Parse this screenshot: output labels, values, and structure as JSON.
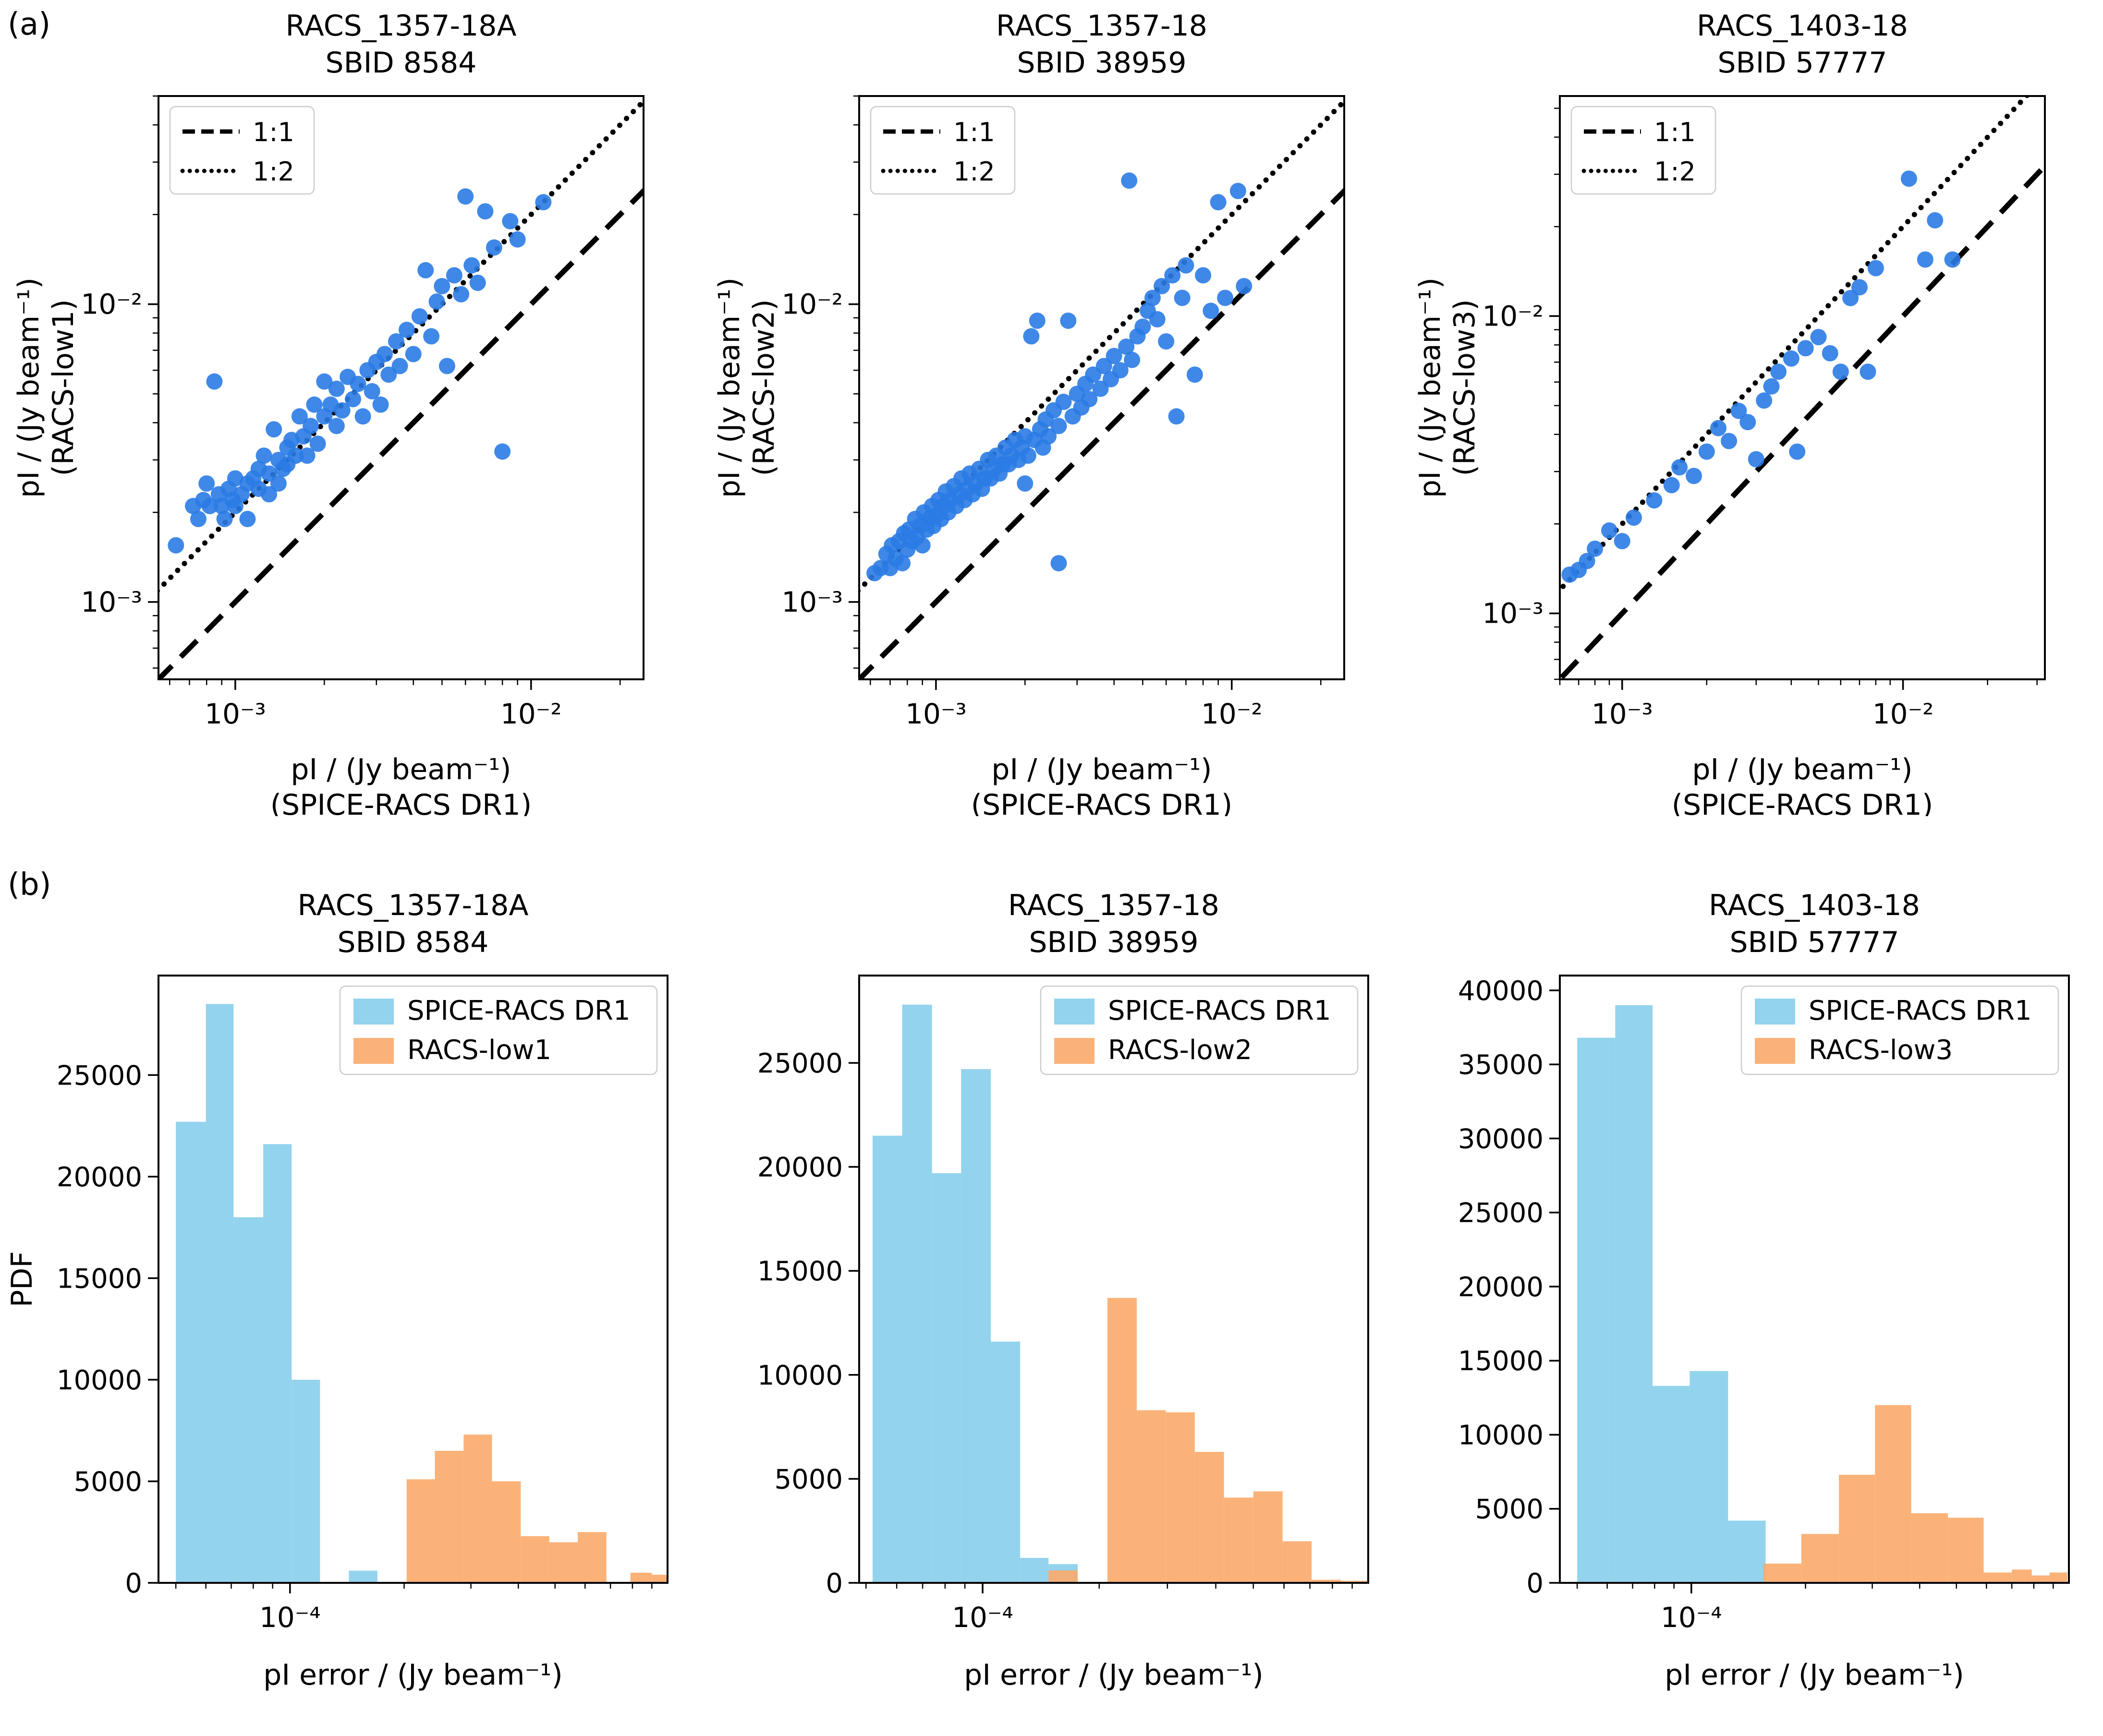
{
  "panel_labels": {
    "a": "(a)",
    "b": "(b)"
  },
  "colors": {
    "scatter_point": "#2a7be4",
    "hist_blue": "#87ceeb",
    "hist_orange": "#fbaa6a",
    "line": "#000000",
    "legend_border": "#cccccc"
  },
  "chart_data": [
    {
      "type": "scatter",
      "title_line1": "RACS_1357-18A",
      "title_line2": "SBID 8584",
      "xlabel_line1": "pI / (Jy beam⁻¹)",
      "xlabel_line2": "(SPICE-RACS DR1)",
      "ylabel_line1": "pI / (Jy beam⁻¹)",
      "ylabel_line2": "(RACS-low1)",
      "xlim": [
        0.00055,
        0.024
      ],
      "ylim": [
        0.00055,
        0.05
      ],
      "xticks": [
        {
          "v": 0.001,
          "label": "10⁻³"
        },
        {
          "v": 0.01,
          "label": "10⁻²"
        }
      ],
      "yticks": [
        {
          "v": 0.001,
          "label": "10⁻³"
        },
        {
          "v": 0.01,
          "label": "10⁻²"
        }
      ],
      "legend": [
        {
          "style": "dashed",
          "label": "1:1"
        },
        {
          "style": "dotted",
          "label": "1:2"
        }
      ],
      "lines": [
        {
          "style": "dashed",
          "slope": 1
        },
        {
          "style": "dotted",
          "slope": 2
        }
      ],
      "points": [
        [
          0.00063,
          0.00155
        ],
        [
          0.00072,
          0.0021
        ],
        [
          0.00075,
          0.0019
        ],
        [
          0.00078,
          0.0022
        ],
        [
          0.0008,
          0.0025
        ],
        [
          0.00082,
          0.0021
        ],
        [
          0.00085,
          0.0055
        ],
        [
          0.00088,
          0.0023
        ],
        [
          0.0009,
          0.0021
        ],
        [
          0.00092,
          0.0019
        ],
        [
          0.00095,
          0.0024
        ],
        [
          0.00098,
          0.0022
        ],
        [
          0.001,
          0.0026
        ],
        [
          0.001,
          0.0021
        ],
        [
          0.00105,
          0.0023
        ],
        [
          0.0011,
          0.0025
        ],
        [
          0.0011,
          0.0019
        ],
        [
          0.00115,
          0.0026
        ],
        [
          0.0012,
          0.0028
        ],
        [
          0.0012,
          0.0024
        ],
        [
          0.00125,
          0.0031
        ],
        [
          0.0013,
          0.0027
        ],
        [
          0.0013,
          0.0023
        ],
        [
          0.00135,
          0.0038
        ],
        [
          0.0014,
          0.003
        ],
        [
          0.0014,
          0.0025
        ],
        [
          0.00145,
          0.0028
        ],
        [
          0.0015,
          0.0033
        ],
        [
          0.0015,
          0.0029
        ],
        [
          0.00155,
          0.0035
        ],
        [
          0.0016,
          0.0031
        ],
        [
          0.00165,
          0.0042
        ],
        [
          0.0017,
          0.0036
        ],
        [
          0.00175,
          0.0031
        ],
        [
          0.0018,
          0.0039
        ],
        [
          0.00185,
          0.0046
        ],
        [
          0.0019,
          0.0034
        ],
        [
          0.002,
          0.0042
        ],
        [
          0.002,
          0.0055
        ],
        [
          0.0021,
          0.0046
        ],
        [
          0.0022,
          0.0039
        ],
        [
          0.0022,
          0.0052
        ],
        [
          0.0023,
          0.0044
        ],
        [
          0.0024,
          0.0057
        ],
        [
          0.0025,
          0.0048
        ],
        [
          0.0026,
          0.0054
        ],
        [
          0.0027,
          0.0042
        ],
        [
          0.0028,
          0.006
        ],
        [
          0.0029,
          0.0051
        ],
        [
          0.003,
          0.0064
        ],
        [
          0.0031,
          0.0046
        ],
        [
          0.0032,
          0.0068
        ],
        [
          0.0033,
          0.0058
        ],
        [
          0.0035,
          0.0075
        ],
        [
          0.0036,
          0.0062
        ],
        [
          0.0038,
          0.0082
        ],
        [
          0.004,
          0.0068
        ],
        [
          0.0042,
          0.0091
        ],
        [
          0.0044,
          0.013
        ],
        [
          0.0046,
          0.0078
        ],
        [
          0.0048,
          0.0102
        ],
        [
          0.005,
          0.0115
        ],
        [
          0.0052,
          0.0062
        ],
        [
          0.0055,
          0.0125
        ],
        [
          0.0058,
          0.0108
        ],
        [
          0.006,
          0.023
        ],
        [
          0.0063,
          0.0135
        ],
        [
          0.0066,
          0.0118
        ],
        [
          0.007,
          0.0205
        ],
        [
          0.0075,
          0.0155
        ],
        [
          0.008,
          0.0032
        ],
        [
          0.0085,
          0.019
        ],
        [
          0.009,
          0.0165
        ],
        [
          0.011,
          0.022
        ]
      ]
    },
    {
      "type": "scatter",
      "title_line1": "RACS_1357-18",
      "title_line2": "SBID 38959",
      "xlabel_line1": "pI / (Jy beam⁻¹)",
      "xlabel_line2": "(SPICE-RACS DR1)",
      "ylabel_line1": "pI / (Jy beam⁻¹)",
      "ylabel_line2": "(RACS-low2)",
      "xlim": [
        0.00055,
        0.024
      ],
      "ylim": [
        0.00055,
        0.05
      ],
      "xticks": [
        {
          "v": 0.001,
          "label": "10⁻³"
        },
        {
          "v": 0.01,
          "label": "10⁻²"
        }
      ],
      "yticks": [
        {
          "v": 0.001,
          "label": "10⁻³"
        },
        {
          "v": 0.01,
          "label": "10⁻²"
        }
      ],
      "legend": [
        {
          "style": "dashed",
          "label": "1:1"
        },
        {
          "style": "dotted",
          "label": "1:2"
        }
      ],
      "lines": [
        {
          "style": "dashed",
          "slope": 1
        },
        {
          "style": "dotted",
          "slope": 2
        }
      ],
      "points": [
        [
          0.00062,
          0.00125
        ],
        [
          0.00065,
          0.0013
        ],
        [
          0.00068,
          0.00145
        ],
        [
          0.0007,
          0.0013
        ],
        [
          0.00071,
          0.00155
        ],
        [
          0.00073,
          0.0014
        ],
        [
          0.00075,
          0.0016
        ],
        [
          0.00077,
          0.00135
        ],
        [
          0.00078,
          0.0017
        ],
        [
          0.0008,
          0.0015
        ],
        [
          0.00081,
          0.00175
        ],
        [
          0.00083,
          0.0016
        ],
        [
          0.00085,
          0.0019
        ],
        [
          0.00086,
          0.00165
        ],
        [
          0.00088,
          0.0018
        ],
        [
          0.0009,
          0.00155
        ],
        [
          0.00091,
          0.002
        ],
        [
          0.00093,
          0.00175
        ],
        [
          0.00095,
          0.0019
        ],
        [
          0.00097,
          0.0021
        ],
        [
          0.00098,
          0.0018
        ],
        [
          0.001,
          0.00195
        ],
        [
          0.00102,
          0.0022
        ],
        [
          0.00104,
          0.0019
        ],
        [
          0.00106,
          0.0021
        ],
        [
          0.00108,
          0.00235
        ],
        [
          0.0011,
          0.002
        ],
        [
          0.00112,
          0.0022
        ],
        [
          0.00115,
          0.00245
        ],
        [
          0.00117,
          0.0021
        ],
        [
          0.0012,
          0.0023
        ],
        [
          0.00122,
          0.0026
        ],
        [
          0.00125,
          0.0022
        ],
        [
          0.00128,
          0.0024
        ],
        [
          0.0013,
          0.0027
        ],
        [
          0.00133,
          0.0023
        ],
        [
          0.00136,
          0.0025
        ],
        [
          0.0014,
          0.0028
        ],
        [
          0.00143,
          0.0024
        ],
        [
          0.00146,
          0.0026
        ],
        [
          0.0015,
          0.003
        ],
        [
          0.00153,
          0.0026
        ],
        [
          0.00157,
          0.0028
        ],
        [
          0.0016,
          0.0031
        ],
        [
          0.00164,
          0.0027
        ],
        [
          0.00168,
          0.0029
        ],
        [
          0.00172,
          0.0033
        ],
        [
          0.00176,
          0.0029
        ],
        [
          0.0018,
          0.0031
        ],
        [
          0.00185,
          0.0035
        ],
        [
          0.0019,
          0.003
        ],
        [
          0.00195,
          0.0033
        ],
        [
          0.002,
          0.0036
        ],
        [
          0.002,
          0.0025
        ],
        [
          0.00205,
          0.0031
        ],
        [
          0.0021,
          0.0078
        ],
        [
          0.00215,
          0.0035
        ],
        [
          0.0022,
          0.0088
        ],
        [
          0.00225,
          0.0038
        ],
        [
          0.0023,
          0.0033
        ],
        [
          0.00235,
          0.0041
        ],
        [
          0.0024,
          0.0036
        ],
        [
          0.0025,
          0.0044
        ],
        [
          0.0026,
          0.00135
        ],
        [
          0.0026,
          0.0039
        ],
        [
          0.0027,
          0.0047
        ],
        [
          0.0028,
          0.0088
        ],
        [
          0.0029,
          0.0042
        ],
        [
          0.003,
          0.005
        ],
        [
          0.0031,
          0.0045
        ],
        [
          0.0032,
          0.0054
        ],
        [
          0.0033,
          0.0048
        ],
        [
          0.0034,
          0.0058
        ],
        [
          0.0036,
          0.0052
        ],
        [
          0.0037,
          0.0062
        ],
        [
          0.0039,
          0.0056
        ],
        [
          0.004,
          0.0067
        ],
        [
          0.0042,
          0.006
        ],
        [
          0.0044,
          0.0072
        ],
        [
          0.0045,
          0.026
        ],
        [
          0.0046,
          0.0065
        ],
        [
          0.0048,
          0.0078
        ],
        [
          0.005,
          0.0084
        ],
        [
          0.0052,
          0.0095
        ],
        [
          0.0054,
          0.0105
        ],
        [
          0.0056,
          0.0089
        ],
        [
          0.0058,
          0.0115
        ],
        [
          0.006,
          0.0075
        ],
        [
          0.0063,
          0.0125
        ],
        [
          0.0065,
          0.0042
        ],
        [
          0.0068,
          0.0105
        ],
        [
          0.007,
          0.0135
        ],
        [
          0.0075,
          0.0058
        ],
        [
          0.008,
          0.0125
        ],
        [
          0.0085,
          0.0095
        ],
        [
          0.009,
          0.022
        ],
        [
          0.0095,
          0.0105
        ],
        [
          0.0105,
          0.024
        ],
        [
          0.011,
          0.0115
        ]
      ]
    },
    {
      "type": "scatter",
      "title_line1": "RACS_1403-18",
      "title_line2": "SBID 57777",
      "xlabel_line1": "pI / (Jy beam⁻¹)",
      "xlabel_line2": "(SPICE-RACS DR1)",
      "ylabel_line1": "pI / (Jy beam⁻¹)",
      "ylabel_line2": "(RACS-low3)",
      "xlim": [
        0.0006,
        0.032
      ],
      "ylim": [
        0.0006,
        0.055
      ],
      "xticks": [
        {
          "v": 0.001,
          "label": "10⁻³"
        },
        {
          "v": 0.01,
          "label": "10⁻²"
        }
      ],
      "yticks": [
        {
          "v": 0.001,
          "label": "10⁻³"
        },
        {
          "v": 0.01,
          "label": "10⁻²"
        }
      ],
      "legend": [
        {
          "style": "dashed",
          "label": "1:1"
        },
        {
          "style": "dotted",
          "label": "1:2"
        }
      ],
      "lines": [
        {
          "style": "dashed",
          "slope": 1
        },
        {
          "style": "dotted",
          "slope": 2
        }
      ],
      "points": [
        [
          0.00065,
          0.00135
        ],
        [
          0.0007,
          0.0014
        ],
        [
          0.00075,
          0.0015
        ],
        [
          0.0008,
          0.00165
        ],
        [
          0.0009,
          0.0019
        ],
        [
          0.001,
          0.00175
        ],
        [
          0.0011,
          0.0021
        ],
        [
          0.0013,
          0.0024
        ],
        [
          0.0015,
          0.0027
        ],
        [
          0.0016,
          0.0031
        ],
        [
          0.0018,
          0.0029
        ],
        [
          0.002,
          0.0035
        ],
        [
          0.0022,
          0.0042
        ],
        [
          0.0024,
          0.0038
        ],
        [
          0.0026,
          0.0048
        ],
        [
          0.0028,
          0.0044
        ],
        [
          0.003,
          0.0033
        ],
        [
          0.0032,
          0.0052
        ],
        [
          0.0034,
          0.0058
        ],
        [
          0.0036,
          0.0065
        ],
        [
          0.004,
          0.0072
        ],
        [
          0.0042,
          0.0035
        ],
        [
          0.0045,
          0.0078
        ],
        [
          0.005,
          0.0085
        ],
        [
          0.0055,
          0.0075
        ],
        [
          0.006,
          0.0065
        ],
        [
          0.0065,
          0.0115
        ],
        [
          0.007,
          0.0125
        ],
        [
          0.0075,
          0.0065
        ],
        [
          0.008,
          0.0145
        ],
        [
          0.0105,
          0.029
        ],
        [
          0.012,
          0.0155
        ],
        [
          0.013,
          0.021
        ],
        [
          0.015,
          0.0155
        ]
      ]
    },
    {
      "type": "histogram",
      "title_line1": "RACS_1357-18A",
      "title_line2": "SBID 8584",
      "xlabel_line1": "pI error / (Jy beam⁻¹)",
      "ylabel": "PDF",
      "xlim": [
        4.5e-05,
        0.00099
      ],
      "ylim": [
        0,
        29900
      ],
      "xticks": [
        {
          "v": 0.0001,
          "label": "10⁻⁴"
        }
      ],
      "yticks": [
        0,
        5000,
        10000,
        15000,
        20000,
        25000
      ],
      "series": [
        {
          "name": "SPICE-RACS DR1",
          "color": "hist_blue",
          "edges": [
            5e-05,
            6e-05,
            7.1e-05,
            8.5e-05,
            0.000101,
            0.00012,
            0.000143,
            0.00017
          ],
          "counts": [
            22700,
            28500,
            18000,
            21600,
            10000,
            0,
            600
          ]
        },
        {
          "name": "RACS-low1",
          "color": "hist_orange",
          "edges": [
            0.000203,
            0.000241,
            0.000287,
            0.000341,
            0.000406,
            0.000483,
            0.000574,
            0.000683,
            0.00079,
            0.0009,
            0.00099
          ],
          "counts": [
            5100,
            6500,
            7300,
            5000,
            2300,
            2000,
            2500,
            0,
            500,
            400
          ]
        }
      ]
    },
    {
      "type": "histogram",
      "title_line1": "RACS_1357-18",
      "title_line2": "SBID 38959",
      "xlabel_line1": "pI error / (Jy beam⁻¹)",
      "ylabel": "",
      "xlim": [
        4.8e-05,
        0.00099
      ],
      "ylim": [
        0,
        29200
      ],
      "xticks": [
        {
          "v": 0.0001,
          "label": "10⁻⁴"
        }
      ],
      "yticks": [
        0,
        5000,
        10000,
        15000,
        20000,
        25000
      ],
      "series": [
        {
          "name": "SPICE-RACS DR1",
          "color": "hist_blue",
          "edges": [
            5.2e-05,
            6.2e-05,
            7.4e-05,
            8.8e-05,
            0.000105,
            0.000125,
            0.000148,
            0.000176
          ],
          "counts": [
            21500,
            27800,
            19700,
            24700,
            11600,
            1200,
            900
          ]
        },
        {
          "name": "RACS-low2",
          "color": "hist_orange",
          "edges": [
            0.000148,
            0.000176,
            0.00021,
            0.00025,
            0.000297,
            0.000353,
            0.00042,
            0.0005,
            0.000595,
            0.000707,
            0.000841,
            0.00099
          ],
          "counts": [
            600,
            0,
            13700,
            8300,
            8200,
            6300,
            4100,
            4400,
            2000,
            150,
            100
          ]
        }
      ]
    },
    {
      "type": "histogram",
      "title_line1": "RACS_1403-18",
      "title_line2": "SBID 57777",
      "xlabel_line1": "pI error / (Jy beam⁻¹)",
      "ylabel": "",
      "xlim": [
        4.5e-05,
        0.00099
      ],
      "ylim": [
        0,
        41000
      ],
      "xticks": [
        {
          "v": 0.0001,
          "label": "10⁻⁴"
        }
      ],
      "yticks": [
        0,
        5000,
        10000,
        15000,
        20000,
        25000,
        30000,
        35000,
        40000
      ],
      "series": [
        {
          "name": "SPICE-RACS DR1",
          "color": "hist_blue",
          "edges": [
            5e-05,
            6.3e-05,
            7.9e-05,
            9.9e-05,
            0.000125,
            0.000157
          ],
          "counts": [
            36800,
            39000,
            13300,
            14300,
            4200
          ]
        },
        {
          "name": "RACS-low3",
          "color": "hist_orange",
          "edges": [
            0.000155,
            0.000195,
            0.000245,
            0.000305,
            0.00038,
            0.000475,
            0.00059,
            0.0007,
            0.00079,
            0.00088,
            0.00098
          ],
          "counts": [
            1300,
            3300,
            7300,
            12000,
            4700,
            4400,
            700,
            900,
            500,
            700
          ]
        }
      ]
    }
  ]
}
